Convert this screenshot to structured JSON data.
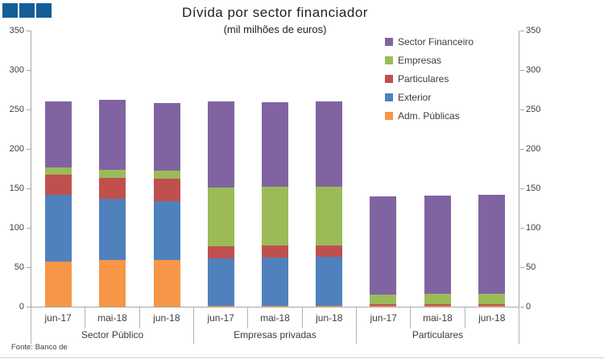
{
  "logo": {
    "color": "#135E96",
    "square_count": 3
  },
  "colors": {
    "axis_line": "#a6a6a6",
    "separator_line": "#b3b3b3",
    "tick_text": "#3d3d3d",
    "title_text": "#1f1f1f"
  },
  "chart_data": {
    "type": "bar",
    "stacked": true,
    "title": "Dívida por sector financiador",
    "subtitle": "(mil milhões de euros)",
    "source_note": "Fonte: Banco de",
    "axes": {
      "ylim": [
        0,
        350
      ],
      "ytick_step": 50,
      "dual_y_axis": true,
      "grid": false
    },
    "groups": [
      "Sector Público",
      "Empresas privadas",
      "Particulares"
    ],
    "categories": [
      "jun-17",
      "mai-18",
      "jun-18"
    ],
    "series": [
      {
        "name": "Adm. Públicas",
        "color": "#F79646",
        "values": [
          [
            57,
            59,
            59
          ],
          [
            1,
            1,
            1
          ],
          [
            1,
            1,
            1
          ]
        ]
      },
      {
        "name": "Exterior",
        "color": "#4F81BD",
        "values": [
          [
            85,
            78,
            75
          ],
          [
            60,
            61,
            62
          ],
          [
            0,
            0,
            0
          ]
        ]
      },
      {
        "name": "Particulares",
        "color": "#C0504D",
        "values": [
          [
            25,
            26,
            28
          ],
          [
            16,
            16,
            15
          ],
          [
            2,
            2,
            2
          ]
        ]
      },
      {
        "name": "Empresas",
        "color": "#9BBB59",
        "values": [
          [
            10,
            11,
            10
          ],
          [
            74,
            74,
            74
          ],
          [
            12,
            13,
            13
          ]
        ]
      },
      {
        "name": "Sector Financeiro",
        "color": "#8064A2",
        "values": [
          [
            83,
            88,
            86
          ],
          [
            109,
            107,
            108
          ],
          [
            125,
            125,
            126
          ]
        ]
      }
    ],
    "group_totals": [
      [
        260,
        262,
        258
      ],
      [
        260,
        259,
        260
      ],
      [
        140,
        141,
        142
      ]
    ],
    "legend": {
      "position": "top-right",
      "order_top_to_bottom": [
        "Sector Financeiro",
        "Empresas",
        "Particulares",
        "Exterior",
        "Adm. Públicas"
      ]
    }
  }
}
